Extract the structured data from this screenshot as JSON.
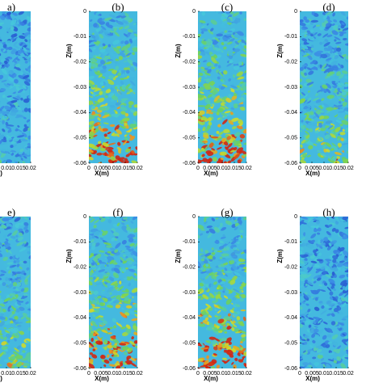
{
  "chart_data": [
    {
      "type": "contour",
      "title": "a)",
      "xlabel": "X(m)",
      "xlim": [
        0,
        0.02
      ],
      "ylim": [
        -0.06,
        0
      ],
      "xticks": [
        0.01,
        0.015,
        0.02
      ]
    },
    {
      "type": "contour",
      "title": "(b)",
      "xlabel": "X(m)",
      "ylabel": "Z(m)",
      "xlim": [
        0,
        0.02
      ],
      "ylim": [
        -0.06,
        0
      ],
      "xticks": [
        0,
        0.005,
        0.01,
        0.015,
        0.02
      ],
      "yticks": [
        0,
        -0.01,
        -0.02,
        -0.03,
        -0.04,
        -0.05,
        -0.06
      ]
    },
    {
      "type": "contour",
      "title": "(c)",
      "xlabel": "X(m)",
      "ylabel": "Z(m)",
      "xlim": [
        0,
        0.02
      ],
      "ylim": [
        -0.06,
        0
      ],
      "xticks": [
        0,
        0.005,
        0.01,
        0.015,
        0.02
      ],
      "yticks": [
        0,
        -0.01,
        -0.02,
        -0.03,
        -0.04,
        -0.05,
        -0.06
      ]
    },
    {
      "type": "contour",
      "title": "(d)",
      "xlabel": "X(m)",
      "ylabel": "Z(m)",
      "xlim": [
        0,
        0.02
      ],
      "ylim": [
        -0.06,
        0
      ],
      "xticks": [
        0,
        0.005,
        0.01,
        0.015,
        0.02
      ],
      "yticks": [
        0,
        -0.01,
        -0.02,
        -0.03,
        -0.04,
        -0.05,
        -0.06
      ]
    },
    {
      "type": "contour",
      "title": "e)",
      "xlabel": "X(m)",
      "xlim": [
        0,
        0.02
      ],
      "ylim": [
        -0.06,
        0
      ],
      "xticks": [
        0.01,
        0.015,
        0.02
      ]
    },
    {
      "type": "contour",
      "title": "(f)",
      "xlabel": "X(m)",
      "ylabel": "Z(m)",
      "xlim": [
        0,
        0.02
      ],
      "ylim": [
        -0.06,
        0
      ],
      "xticks": [
        0,
        0.005,
        0.01,
        0.015,
        0.02
      ],
      "yticks": [
        0,
        -0.01,
        -0.02,
        -0.03,
        -0.04,
        -0.05,
        -0.06
      ]
    },
    {
      "type": "contour",
      "title": "(g)",
      "xlabel": "X(m)",
      "ylabel": "Z(m)",
      "xlim": [
        0,
        0.02
      ],
      "ylim": [
        -0.06,
        0
      ],
      "xticks": [
        0,
        0.005,
        0.01,
        0.015,
        0.02
      ],
      "yticks": [
        0,
        -0.01,
        -0.02,
        -0.03,
        -0.04,
        -0.05,
        -0.06
      ]
    },
    {
      "type": "contour",
      "title": "(h)",
      "xlabel": "X(m)",
      "ylabel": "Z(m)",
      "xlim": [
        0,
        0.02
      ],
      "ylim": [
        -0.06,
        0
      ],
      "xticks": [
        0,
        0.005,
        0.01,
        0.015,
        0.02
      ],
      "yticks": [
        0,
        -0.01,
        -0.02,
        -0.03,
        -0.04,
        -0.05,
        -0.06
      ]
    }
  ]
}
